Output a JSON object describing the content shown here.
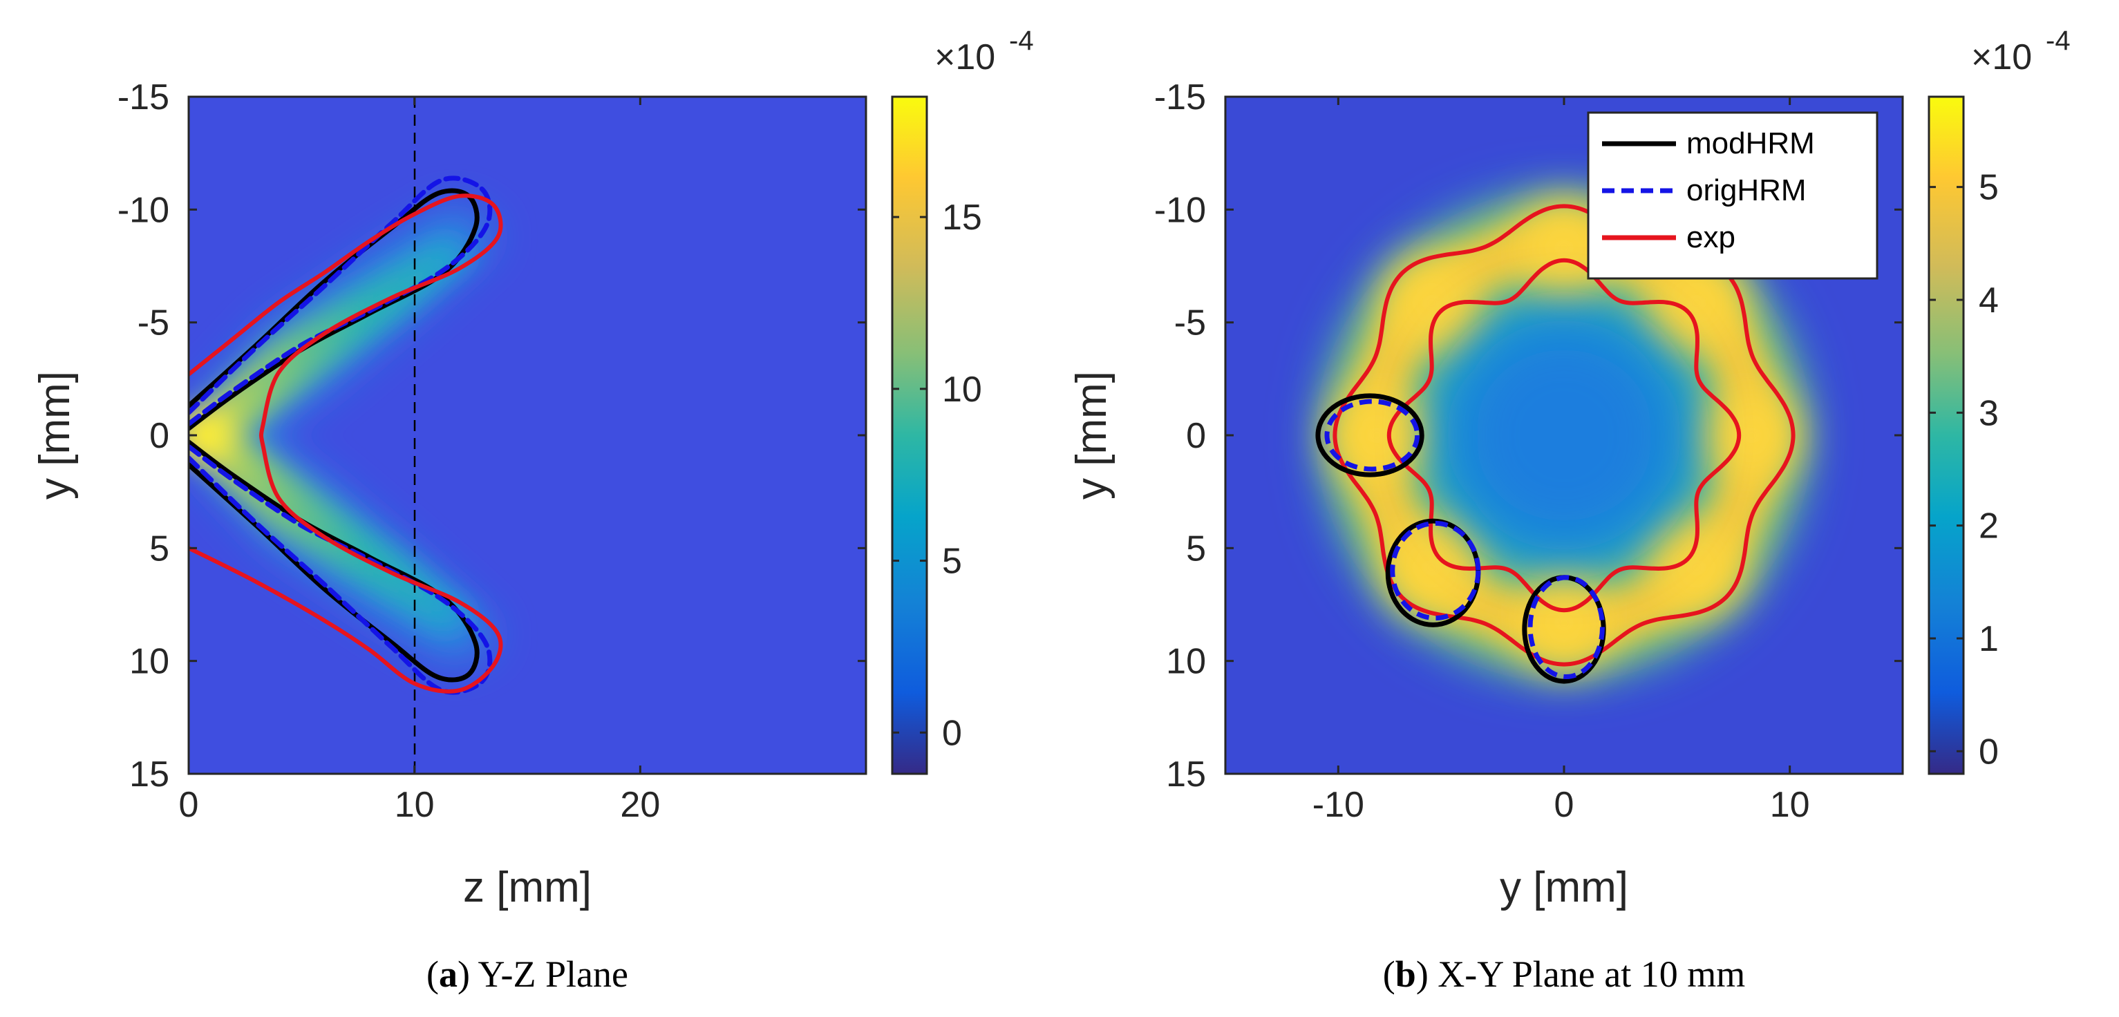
{
  "chart_data": [
    {
      "type": "heatmap",
      "panel": "a",
      "title": "Y-Z Plane",
      "caption_letter": "a",
      "caption_text": "Y-Z Plane",
      "xlabel": "z [mm]",
      "ylabel": "y [mm]",
      "xlim": [
        0,
        30
      ],
      "ylim": [
        -15,
        15
      ],
      "y_reversed": true,
      "xticks": [
        0,
        10,
        20
      ],
      "xtick_labels": [
        "0",
        "10",
        "20"
      ],
      "yticks": [
        -15,
        -10,
        -5,
        0,
        5,
        10,
        15
      ],
      "ytick_labels": [
        "-15",
        "-10",
        "-5",
        "0",
        "5",
        "10",
        "15"
      ],
      "colorbar": {
        "range": [
          -1.2,
          18.5
        ],
        "ticks": [
          0,
          5,
          10,
          15
        ],
        "tick_labels": [
          "0",
          "5",
          "10",
          "15"
        ],
        "multiplier_base": "×10",
        "multiplier_exp": "-4"
      },
      "reference_line": {
        "axis": "z",
        "value": 10,
        "style": "dashed"
      },
      "series": [
        {
          "name": "modHRM",
          "color": "#000000",
          "style": "solid",
          "branches": [
            [
              [
                0,
                -1.3
              ],
              [
                3,
                -4.0
              ],
              [
                6,
                -6.8
              ],
              [
                9,
                -9.2
              ],
              [
                11,
                -10.7
              ],
              [
                12.4,
                -10.6
              ],
              [
                12.7,
                -9.2
              ],
              [
                11.3,
                -7.2
              ],
              [
                8,
                -5.4
              ],
              [
                5,
                -3.8
              ],
              [
                2,
                -1.8
              ],
              [
                0,
                -0.3
              ]
            ],
            [
              [
                0,
                1.3
              ],
              [
                3,
                4.0
              ],
              [
                6,
                6.8
              ],
              [
                9,
                9.2
              ],
              [
                11,
                10.7
              ],
              [
                12.4,
                10.6
              ],
              [
                12.7,
                9.2
              ],
              [
                11.3,
                7.2
              ],
              [
                8,
                5.4
              ],
              [
                5,
                3.8
              ],
              [
                2,
                1.8
              ],
              [
                0,
                0.3
              ]
            ]
          ]
        },
        {
          "name": "origHRM",
          "color": "#1414e6",
          "style": "dashed",
          "branches": [
            [
              [
                0,
                -1.0
              ],
              [
                3,
                -3.9
              ],
              [
                6,
                -6.6
              ],
              [
                9,
                -9.4
              ],
              [
                11.2,
                -11.3
              ],
              [
                13,
                -10.9
              ],
              [
                13.2,
                -9.3
              ],
              [
                11.4,
                -7.4
              ],
              [
                8,
                -5.5
              ],
              [
                5,
                -4.0
              ],
              [
                2,
                -2.0
              ],
              [
                0,
                -0.5
              ]
            ],
            [
              [
                0,
                1.0
              ],
              [
                3,
                3.9
              ],
              [
                6,
                6.6
              ],
              [
                9,
                9.4
              ],
              [
                11.2,
                11.3
              ],
              [
                13,
                10.9
              ],
              [
                13.2,
                9.3
              ],
              [
                11.4,
                7.4
              ],
              [
                8,
                5.5
              ],
              [
                5,
                4.0
              ],
              [
                2,
                2.0
              ],
              [
                0,
                0.5
              ]
            ]
          ]
        },
        {
          "name": "exp",
          "color": "#e6141e",
          "style": "solid",
          "branches": [
            [
              [
                0,
                -2.7
              ],
              [
                2,
                -4.3
              ],
              [
                4,
                -5.9
              ],
              [
                6,
                -7.2
              ],
              [
                8,
                -8.6
              ],
              [
                10,
                -9.8
              ],
              [
                12,
                -10.6
              ],
              [
                13.5,
                -10.2
              ],
              [
                13.7,
                -8.8
              ],
              [
                12,
                -7.4
              ],
              [
                9,
                -6.1
              ],
              [
                6,
                -4.5
              ],
              [
                4,
                -2.8
              ],
              [
                3.3,
                -0.5
              ],
              [
                3.3,
                0.5
              ],
              [
                4,
                2.8
              ],
              [
                6,
                4.5
              ],
              [
                9,
                6.1
              ],
              [
                12,
                7.4
              ],
              [
                13.7,
                8.8
              ],
              [
                13.5,
                10.2
              ],
              [
                12,
                11.3
              ],
              [
                10,
                11.0
              ],
              [
                8,
                9.5
              ],
              [
                6,
                8.2
              ],
              [
                3,
                6.5
              ],
              [
                0,
                5.0
              ]
            ]
          ]
        }
      ],
      "field_description": "Two bright diagonal lobes meeting at z=0, y=0 forming a V opening to the right; values drop to near zero elsewhere"
    },
    {
      "type": "heatmap",
      "panel": "b",
      "title": "X-Y Plane at 10 mm",
      "caption_letter": "b",
      "caption_text": "X-Y Plane at 10 mm",
      "xlabel": "y [mm]",
      "ylabel": "y [mm]",
      "xlim": [
        -15,
        15
      ],
      "ylim": [
        -15,
        15
      ],
      "y_reversed": true,
      "xticks": [
        -10,
        0,
        10
      ],
      "xtick_labels": [
        "-10",
        "0",
        "10"
      ],
      "yticks": [
        -15,
        -10,
        -5,
        0,
        5,
        10,
        15
      ],
      "ytick_labels": [
        "-15",
        "-10",
        "-5",
        "0",
        "5",
        "10",
        "15"
      ],
      "colorbar": {
        "range": [
          -0.2,
          5.8
        ],
        "ticks": [
          0,
          1,
          2,
          3,
          4,
          5
        ],
        "tick_labels": [
          "0",
          "1",
          "2",
          "3",
          "4",
          "5"
        ],
        "multiplier_base": "×10",
        "multiplier_exp": "-4"
      },
      "legend": {
        "position": "top-right",
        "entries": [
          {
            "label": "modHRM",
            "color": "#000000",
            "style": "solid"
          },
          {
            "label": "origHRM",
            "color": "#1414e6",
            "style": "dashed"
          },
          {
            "label": "exp",
            "color": "#e6141e",
            "style": "solid"
          }
        ]
      },
      "series": [
        {
          "name": "modHRM",
          "color": "#000000",
          "style": "solid",
          "ellipses": [
            {
              "center": [
                -8.6,
                0.0
              ],
              "radii": [
                2.3,
                1.75
              ]
            },
            {
              "center": [
                -5.8,
                6.1
              ],
              "radii": [
                2.0,
                2.3
              ]
            },
            {
              "center": [
                0.0,
                8.6
              ],
              "radii": [
                1.75,
                2.3
              ]
            }
          ]
        },
        {
          "name": "origHRM",
          "color": "#1414e6",
          "style": "dashed",
          "ellipses": [
            {
              "center": [
                -8.5,
                0.0
              ],
              "radii": [
                2.0,
                1.5
              ]
            },
            {
              "center": [
                -5.7,
                6.0
              ],
              "radii": [
                1.9,
                2.1
              ]
            },
            {
              "center": [
                0.1,
                8.5
              ],
              "radii": [
                1.6,
                2.2
              ]
            }
          ]
        },
        {
          "name": "exp",
          "color": "#e6141e",
          "style": "solid",
          "contours": [
            {
              "kind": "wavy-ring",
              "radius": 9.6,
              "amplitude": 0.55,
              "lobes": 8
            },
            {
              "kind": "wavy-ring",
              "radius": 7.1,
              "amplitude": 0.65,
              "lobes": 8
            }
          ]
        }
      ],
      "field_description": "Bright ring of eight peaks of radius about 8 mm centered at the origin; low values inside and outside the ring"
    }
  ]
}
